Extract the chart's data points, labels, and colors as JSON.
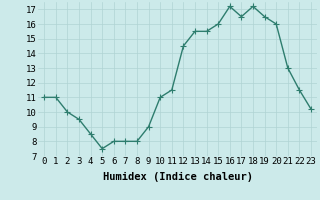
{
  "x": [
    0,
    1,
    2,
    3,
    4,
    5,
    6,
    7,
    8,
    9,
    10,
    11,
    12,
    13,
    14,
    15,
    16,
    17,
    18,
    19,
    20,
    21,
    22,
    23
  ],
  "y": [
    11,
    11,
    10,
    9.5,
    8.5,
    7.5,
    8,
    8.0,
    8.0,
    9,
    11,
    11.5,
    14.5,
    15.5,
    15.5,
    16,
    17.2,
    16.5,
    17.2,
    16.5,
    16,
    13,
    11.5,
    10.2
  ],
  "line_color": "#2e7d6e",
  "marker": "+",
  "marker_size": 4,
  "xlabel": "Humidex (Indice chaleur)",
  "xlim": [
    -0.5,
    23.5
  ],
  "ylim": [
    7,
    17.5
  ],
  "yticks": [
    7,
    8,
    9,
    10,
    11,
    12,
    13,
    14,
    15,
    16,
    17
  ],
  "xticks": [
    0,
    1,
    2,
    3,
    4,
    5,
    6,
    7,
    8,
    9,
    10,
    11,
    12,
    13,
    14,
    15,
    16,
    17,
    18,
    19,
    20,
    21,
    22,
    23
  ],
  "xtick_labels": [
    "0",
    "1",
    "2",
    "3",
    "4",
    "5",
    "6",
    "7",
    "8",
    "9",
    "10",
    "11",
    "12",
    "13",
    "14",
    "15",
    "16",
    "17",
    "18",
    "19",
    "20",
    "21",
    "22",
    "23"
  ],
  "background_color": "#cceaea",
  "grid_color": "#b0d4d4",
  "tick_fontsize": 6.5,
  "xlabel_fontsize": 7.5,
  "linewidth": 1.0,
  "markeredgewidth": 0.8
}
